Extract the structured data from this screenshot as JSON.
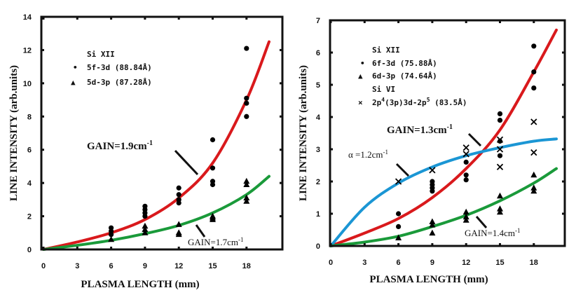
{
  "chart_data": [
    {
      "type": "scatter",
      "title": "",
      "xlabel": "PLASMA LENGTH (mm)",
      "ylabel": "LINE INTENSITY (arb.units)",
      "xlim": [
        0,
        20.5
      ],
      "ylim": [
        0,
        14
      ],
      "xticks": [
        0,
        3,
        6,
        9,
        12,
        15,
        18
      ],
      "yticks": [
        0,
        2,
        4,
        6,
        8,
        10,
        12,
        14
      ],
      "grid": false,
      "legend_title": "Si XII",
      "legend_position": "top-left",
      "series": [
        {
          "name": "5f-3d (88.84Å)",
          "marker": "circle",
          "color": "#000000",
          "points": [
            [
              6,
              1.3
            ],
            [
              6,
              1.1
            ],
            [
              6,
              0.9
            ],
            [
              9,
              2.6
            ],
            [
              9,
              2.4
            ],
            [
              9,
              2.2
            ],
            [
              9,
              2.0
            ],
            [
              12,
              3.7
            ],
            [
              12,
              3.3
            ],
            [
              12,
              3.0
            ],
            [
              12,
              2.8
            ],
            [
              15,
              6.6
            ],
            [
              15,
              4.9
            ],
            [
              15,
              4.1
            ],
            [
              15,
              3.9
            ],
            [
              18,
              12.1
            ],
            [
              18,
              9.1
            ],
            [
              18,
              8.8
            ],
            [
              18,
              8.0
            ]
          ]
        },
        {
          "name": "5d-3p (87.28Å)",
          "marker": "triangle",
          "color": "#000000",
          "points": [
            [
              6,
              0.6
            ],
            [
              9,
              1.4
            ],
            [
              9,
              1.2
            ],
            [
              9,
              1.0
            ],
            [
              12,
              1.5
            ],
            [
              12,
              1.0
            ],
            [
              12,
              0.9
            ],
            [
              15,
              2.0
            ],
            [
              15,
              1.9
            ],
            [
              15,
              1.8
            ],
            [
              18,
              4.1
            ],
            [
              18,
              3.9
            ],
            [
              18,
              3.1
            ],
            [
              18,
              2.9
            ]
          ]
        }
      ],
      "fits": [
        {
          "name": "GAIN=1.9cm-1",
          "color": "#d9191c",
          "model": "exp_gain",
          "gain_cm": 1.9,
          "points": [
            [
              0,
              0
            ],
            [
              3,
              0.45
            ],
            [
              6,
              1.0
            ],
            [
              9,
              1.8
            ],
            [
              12,
              3.1
            ],
            [
              15,
              5.2
            ],
            [
              18,
              9.0
            ],
            [
              20,
              12.5
            ]
          ]
        },
        {
          "name": "GAIN=1.7cm-1",
          "color": "#1a9a3a",
          "model": "exp_gain",
          "gain_cm": 1.7,
          "points": [
            [
              0,
              0
            ],
            [
              3,
              0.25
            ],
            [
              6,
              0.55
            ],
            [
              9,
              0.95
            ],
            [
              12,
              1.45
            ],
            [
              15,
              2.2
            ],
            [
              18,
              3.3
            ],
            [
              20,
              4.4
            ]
          ]
        }
      ],
      "annotations": [
        {
          "text": "GAIN=1.9cm",
          "sup": "-1",
          "target": "red-fit"
        },
        {
          "text": "GAIN=1.7cm",
          "sup": "-1",
          "target": "green-fit"
        }
      ]
    },
    {
      "type": "scatter",
      "title": "",
      "xlabel": "PLASMA LENGTH (mm)",
      "ylabel": "LINE INTENSITY (arb.units)",
      "xlim": [
        0,
        20.5
      ],
      "ylim": [
        0,
        7
      ],
      "xticks": [
        0,
        3,
        6,
        9,
        12,
        15,
        18
      ],
      "yticks": [
        0,
        1,
        2,
        3,
        4,
        5,
        6,
        7
      ],
      "grid": false,
      "legend_position": "top-left",
      "legend_groups": [
        "Si XII",
        "Si VI"
      ],
      "series": [
        {
          "name": "6f-3d (75.88Å)",
          "group": "Si XII",
          "marker": "circle",
          "color": "#000000",
          "points": [
            [
              6,
              1.0
            ],
            [
              6,
              0.6
            ],
            [
              9,
              2.0
            ],
            [
              9,
              1.9
            ],
            [
              9,
              1.8
            ],
            [
              9,
              1.7
            ],
            [
              12,
              2.6
            ],
            [
              12,
              2.2
            ],
            [
              12,
              2.05
            ],
            [
              15,
              4.1
            ],
            [
              15,
              3.9
            ],
            [
              15,
              3.25
            ],
            [
              15,
              2.8
            ],
            [
              18,
              6.2
            ],
            [
              18,
              5.4
            ],
            [
              18,
              4.9
            ]
          ]
        },
        {
          "name": "6d-3p (74.64Å)",
          "group": "Si XII",
          "marker": "triangle",
          "color": "#000000",
          "points": [
            [
              6,
              0.25
            ],
            [
              9,
              0.75
            ],
            [
              9,
              0.65
            ],
            [
              9,
              0.4
            ],
            [
              12,
              1.05
            ],
            [
              12,
              0.9
            ],
            [
              12,
              0.8
            ],
            [
              15,
              1.55
            ],
            [
              15,
              1.15
            ],
            [
              15,
              1.05
            ],
            [
              18,
              2.2
            ],
            [
              18,
              1.8
            ],
            [
              18,
              1.7
            ]
          ]
        },
        {
          "name": "2p4(3p)3d-2p5 (83.5Å)",
          "group": "Si VI",
          "marker": "x",
          "color": "#000000",
          "points": [
            [
              6,
              2.0
            ],
            [
              9,
              2.35
            ],
            [
              12,
              3.05
            ],
            [
              12,
              2.85
            ],
            [
              15,
              3.3
            ],
            [
              15,
              3.0
            ],
            [
              15,
              2.45
            ],
            [
              18,
              3.85
            ],
            [
              18,
              2.9
            ]
          ]
        }
      ],
      "fits": [
        {
          "name": "GAIN=1.3cm-1",
          "color": "#d9191c",
          "model": "exp_gain",
          "gain_cm": 1.3,
          "points": [
            [
              0,
              0
            ],
            [
              3,
              0.4
            ],
            [
              6,
              0.85
            ],
            [
              9,
              1.5
            ],
            [
              12,
              2.4
            ],
            [
              15,
              3.6
            ],
            [
              18,
              5.4
            ],
            [
              20,
              6.7
            ]
          ]
        },
        {
          "name": "alpha=1.2cm-1",
          "color": "#1b96d4",
          "model": "absorption",
          "alpha_cm": 1.2,
          "points": [
            [
              0,
              0
            ],
            [
              3,
              1.2
            ],
            [
              6,
              1.95
            ],
            [
              9,
              2.45
            ],
            [
              12,
              2.8
            ],
            [
              15,
              3.05
            ],
            [
              18,
              3.25
            ],
            [
              20,
              3.32
            ]
          ]
        },
        {
          "name": "GAIN=1.4cm-1",
          "color": "#1a9a3a",
          "model": "exp_gain",
          "gain_cm": 1.4,
          "points": [
            [
              0,
              0
            ],
            [
              3,
              0.12
            ],
            [
              6,
              0.3
            ],
            [
              9,
              0.6
            ],
            [
              12,
              0.95
            ],
            [
              15,
              1.4
            ],
            [
              18,
              1.95
            ],
            [
              20,
              2.4
            ]
          ]
        }
      ],
      "annotations": [
        {
          "text": "GAIN=1.3cm",
          "sup": "-1",
          "target": "red-fit"
        },
        {
          "text": "α =1.2cm",
          "sup": "-1",
          "target": "blue-fit"
        },
        {
          "text": "GAIN=1.4cm",
          "sup": "-1",
          "target": "green-fit"
        }
      ]
    }
  ],
  "left": {
    "legend": {
      "title": "Si XII",
      "items": [
        {
          "symbol": "•",
          "label": "5f-3d (88.84Å)"
        },
        {
          "symbol": "▲",
          "label": "5d-3p (87.28Å)"
        }
      ]
    },
    "ann_red": "GAIN=1.9cm",
    "ann_green": "GAIN=1.7cm",
    "sup": "-1",
    "xlabel": "PLASMA LENGTH (mm)",
    "ylabel": "LINE INTENSITY (arb.units)"
  },
  "right": {
    "legend": {
      "group1": "Si XII",
      "items1": [
        {
          "symbol": "•",
          "label": "6f-3d (75.88Å)"
        },
        {
          "symbol": "▲",
          "label": "6d-3p (74.64Å)"
        }
      ],
      "group2": "Si VI",
      "item3_symbol": "×",
      "item3_pre": "2p",
      "item3_sup1": "4",
      "item3_mid": "(3p)3d-2p",
      "item3_sup2": "5",
      "item3_post": " (83.5Å)"
    },
    "ann_red": "GAIN=1.3cm",
    "ann_blue": "α =1.2cm",
    "ann_green": "GAIN=1.4cm",
    "sup": "-1",
    "xlabel": "PLASMA LENGTH (mm)",
    "ylabel": "LINE INTENSITY (arb.units)"
  }
}
